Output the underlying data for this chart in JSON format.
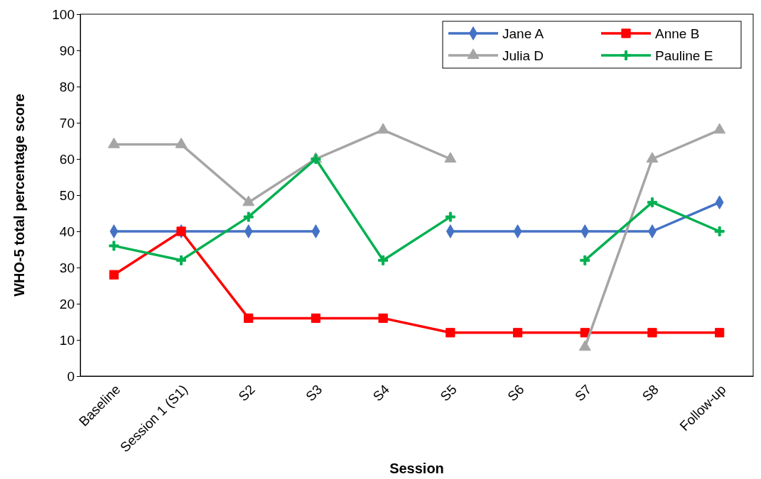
{
  "chart_data": {
    "type": "line",
    "xlabel": "Session",
    "ylabel": "WHO-5 total percentage score",
    "categories": [
      "Baseline",
      "Session 1 (S1)",
      "S2",
      "S3",
      "S4",
      "S5",
      "S6",
      "S7",
      "S8",
      "Follow-up"
    ],
    "ylim": [
      0,
      100
    ],
    "yticks": [
      0,
      10,
      20,
      30,
      40,
      50,
      60,
      70,
      80,
      90,
      100
    ],
    "grid": false,
    "legend": "top right",
    "line_style": "solid",
    "series": [
      {
        "name": "Jane A",
        "color": "#4472c4",
        "marker": "diamond",
        "values": [
          40,
          40,
          40,
          40,
          null,
          40,
          40,
          40,
          40,
          48
        ]
      },
      {
        "name": "Anne B",
        "color": "#ff0000",
        "marker": "square",
        "values": [
          28,
          40,
          16,
          16,
          16,
          12,
          12,
          12,
          12,
          12
        ]
      },
      {
        "name": "Julia D",
        "color": "#a5a5a5",
        "marker": "triangle",
        "values": [
          64,
          64,
          48,
          60,
          68,
          60,
          null,
          8,
          60,
          68
        ]
      },
      {
        "name": "Pauline E",
        "color": "#00b050",
        "marker": "cross",
        "values": [
          36,
          32,
          44,
          60,
          32,
          44,
          null,
          32,
          48,
          40
        ]
      }
    ]
  }
}
